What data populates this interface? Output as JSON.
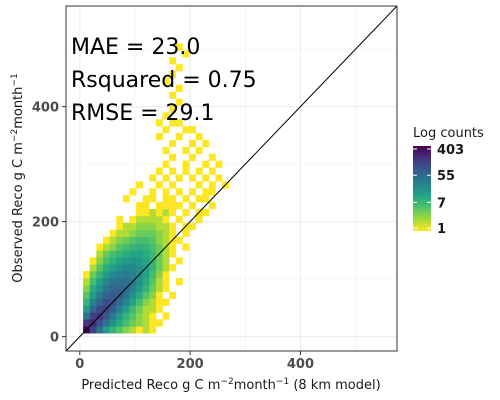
{
  "chart_data": {
    "type": "heatmap",
    "xlabel": "Predicted Reco g C m",
    "xlabel_sup1": "−2",
    "xlabel_mid": "month",
    "xlabel_sup2": "−1",
    "xlabel_suffix": " (8 km model)",
    "ylabel": "Observed Reco g C m",
    "ylabel_sup1": "−2",
    "ylabel_mid": "month",
    "ylabel_sup2": "−1",
    "xlim": [
      -25,
      575
    ],
    "ylim": [
      -25,
      575
    ],
    "x_ticks": [
      0,
      200,
      400
    ],
    "y_ticks": [
      0,
      200,
      400
    ],
    "x_tick_labels": [
      "0",
      "200",
      "400"
    ],
    "y_tick_labels": [
      "0",
      "200",
      "400"
    ],
    "grid": true,
    "bin_width": 12,
    "reference_line": "1:1",
    "annotations": [
      "MAE = 23.0",
      "Rsquared = 0.75",
      "RMSE = 29.1"
    ],
    "legend": {
      "title": "Log counts",
      "labels": [
        "403",
        "55",
        "7",
        "1"
      ],
      "label_values": [
        403,
        55,
        7,
        1
      ],
      "min": 1,
      "max": 403,
      "placement": "right",
      "colors": [
        "#fde725",
        "#a0da39",
        "#4ac16d",
        "#1fa187",
        "#277f8e",
        "#365c8d",
        "#46327e",
        "#440154"
      ]
    },
    "bins": [
      [
        12,
        12,
        403
      ],
      [
        24,
        12,
        120
      ],
      [
        36,
        12,
        40
      ],
      [
        48,
        12,
        15
      ],
      [
        60,
        12,
        8
      ],
      [
        72,
        12,
        5
      ],
      [
        84,
        12,
        3
      ],
      [
        96,
        12,
        2
      ],
      [
        108,
        12,
        1
      ],
      [
        120,
        12,
        2
      ],
      [
        132,
        12,
        1
      ],
      [
        12,
        24,
        150
      ],
      [
        24,
        24,
        200
      ],
      [
        36,
        24,
        90
      ],
      [
        48,
        24,
        40
      ],
      [
        60,
        24,
        20
      ],
      [
        72,
        24,
        10
      ],
      [
        84,
        24,
        6
      ],
      [
        96,
        24,
        4
      ],
      [
        108,
        24,
        3
      ],
      [
        120,
        24,
        2
      ],
      [
        132,
        24,
        1
      ],
      [
        144,
        24,
        1
      ],
      [
        12,
        36,
        40
      ],
      [
        24,
        36,
        130
      ],
      [
        36,
        36,
        160
      ],
      [
        48,
        36,
        80
      ],
      [
        60,
        36,
        35
      ],
      [
        72,
        36,
        15
      ],
      [
        84,
        36,
        8
      ],
      [
        96,
        36,
        5
      ],
      [
        108,
        36,
        3
      ],
      [
        120,
        36,
        2
      ],
      [
        132,
        36,
        1
      ],
      [
        156,
        36,
        1
      ],
      [
        12,
        48,
        15
      ],
      [
        24,
        48,
        60
      ],
      [
        36,
        48,
        110
      ],
      [
        48,
        48,
        120
      ],
      [
        60,
        48,
        70
      ],
      [
        72,
        48,
        30
      ],
      [
        84,
        48,
        14
      ],
      [
        96,
        48,
        7
      ],
      [
        108,
        48,
        4
      ],
      [
        120,
        48,
        2
      ],
      [
        132,
        48,
        2
      ],
      [
        144,
        48,
        1
      ],
      [
        12,
        60,
        8
      ],
      [
        24,
        60,
        30
      ],
      [
        36,
        60,
        60
      ],
      [
        48,
        60,
        100
      ],
      [
        60,
        60,
        90
      ],
      [
        72,
        60,
        55
      ],
      [
        84,
        60,
        25
      ],
      [
        96,
        60,
        12
      ],
      [
        108,
        60,
        6
      ],
      [
        120,
        60,
        3
      ],
      [
        132,
        60,
        2
      ],
      [
        144,
        60,
        1
      ],
      [
        156,
        60,
        1
      ],
      [
        12,
        72,
        5
      ],
      [
        24,
        72,
        15
      ],
      [
        36,
        72,
        35
      ],
      [
        48,
        72,
        60
      ],
      [
        60,
        72,
        80
      ],
      [
        72,
        72,
        70
      ],
      [
        84,
        72,
        40
      ],
      [
        96,
        72,
        20
      ],
      [
        108,
        72,
        10
      ],
      [
        120,
        72,
        5
      ],
      [
        132,
        72,
        3
      ],
      [
        144,
        72,
        1
      ],
      [
        168,
        72,
        1
      ],
      [
        12,
        84,
        3
      ],
      [
        24,
        84,
        10
      ],
      [
        36,
        84,
        20
      ],
      [
        48,
        84,
        40
      ],
      [
        60,
        84,
        55
      ],
      [
        72,
        84,
        60
      ],
      [
        84,
        84,
        50
      ],
      [
        96,
        84,
        30
      ],
      [
        108,
        84,
        15
      ],
      [
        120,
        84,
        8
      ],
      [
        132,
        84,
        4
      ],
      [
        144,
        84,
        2
      ],
      [
        156,
        84,
        1
      ],
      [
        12,
        96,
        2
      ],
      [
        24,
        96,
        6
      ],
      [
        36,
        96,
        14
      ],
      [
        48,
        96,
        25
      ],
      [
        60,
        96,
        40
      ],
      [
        72,
        96,
        45
      ],
      [
        84,
        96,
        45
      ],
      [
        96,
        96,
        35
      ],
      [
        108,
        96,
        20
      ],
      [
        120,
        96,
        10
      ],
      [
        132,
        96,
        5
      ],
      [
        144,
        96,
        2
      ],
      [
        156,
        96,
        1
      ],
      [
        180,
        96,
        1
      ],
      [
        12,
        108,
        1
      ],
      [
        24,
        108,
        4
      ],
      [
        36,
        108,
        8
      ],
      [
        48,
        108,
        15
      ],
      [
        60,
        108,
        25
      ],
      [
        72,
        108,
        30
      ],
      [
        84,
        108,
        35
      ],
      [
        96,
        108,
        30
      ],
      [
        108,
        108,
        22
      ],
      [
        120,
        108,
        12
      ],
      [
        132,
        108,
        6
      ],
      [
        144,
        108,
        3
      ],
      [
        156,
        108,
        1
      ],
      [
        24,
        120,
        2
      ],
      [
        36,
        120,
        5
      ],
      [
        48,
        120,
        10
      ],
      [
        60,
        120,
        15
      ],
      [
        72,
        120,
        20
      ],
      [
        84,
        120,
        25
      ],
      [
        96,
        120,
        25
      ],
      [
        108,
        120,
        20
      ],
      [
        120,
        120,
        14
      ],
      [
        132,
        120,
        8
      ],
      [
        144,
        120,
        4
      ],
      [
        156,
        120,
        2
      ],
      [
        168,
        120,
        1
      ],
      [
        24,
        132,
        1
      ],
      [
        36,
        132,
        3
      ],
      [
        48,
        132,
        6
      ],
      [
        60,
        132,
        9
      ],
      [
        72,
        132,
        12
      ],
      [
        84,
        132,
        15
      ],
      [
        96,
        132,
        18
      ],
      [
        108,
        132,
        16
      ],
      [
        120,
        132,
        12
      ],
      [
        132,
        132,
        8
      ],
      [
        144,
        132,
        4
      ],
      [
        156,
        132,
        2
      ],
      [
        180,
        132,
        1
      ],
      [
        36,
        144,
        2
      ],
      [
        48,
        144,
        4
      ],
      [
        60,
        144,
        6
      ],
      [
        72,
        144,
        8
      ],
      [
        84,
        144,
        10
      ],
      [
        96,
        144,
        12
      ],
      [
        108,
        144,
        12
      ],
      [
        120,
        144,
        10
      ],
      [
        132,
        144,
        7
      ],
      [
        144,
        144,
        4
      ],
      [
        156,
        144,
        2
      ],
      [
        168,
        144,
        1
      ],
      [
        36,
        156,
        1
      ],
      [
        48,
        156,
        2
      ],
      [
        60,
        156,
        3
      ],
      [
        72,
        156,
        5
      ],
      [
        84,
        156,
        6
      ],
      [
        96,
        156,
        8
      ],
      [
        108,
        156,
        9
      ],
      [
        120,
        156,
        8
      ],
      [
        132,
        156,
        6
      ],
      [
        144,
        156,
        4
      ],
      [
        156,
        156,
        2
      ],
      [
        168,
        156,
        1
      ],
      [
        192,
        156,
        1
      ],
      [
        48,
        168,
        1
      ],
      [
        60,
        168,
        2
      ],
      [
        72,
        168,
        3
      ],
      [
        84,
        168,
        4
      ],
      [
        96,
        168,
        5
      ],
      [
        108,
        168,
        6
      ],
      [
        120,
        168,
        6
      ],
      [
        132,
        168,
        5
      ],
      [
        144,
        168,
        3
      ],
      [
        156,
        168,
        2
      ],
      [
        168,
        168,
        1
      ],
      [
        180,
        168,
        1
      ],
      [
        60,
        180,
        1
      ],
      [
        72,
        180,
        2
      ],
      [
        84,
        180,
        2
      ],
      [
        96,
        180,
        3
      ],
      [
        108,
        180,
        4
      ],
      [
        120,
        180,
        4
      ],
      [
        132,
        180,
        4
      ],
      [
        144,
        180,
        3
      ],
      [
        156,
        180,
        2
      ],
      [
        168,
        180,
        1
      ],
      [
        192,
        180,
        1
      ],
      [
        72,
        192,
        1
      ],
      [
        84,
        192,
        2
      ],
      [
        96,
        192,
        2
      ],
      [
        108,
        192,
        3
      ],
      [
        120,
        192,
        3
      ],
      [
        132,
        192,
        3
      ],
      [
        144,
        192,
        2
      ],
      [
        156,
        192,
        2
      ],
      [
        168,
        192,
        1
      ],
      [
        192,
        192,
        1
      ],
      [
        204,
        192,
        1
      ],
      [
        72,
        204,
        1
      ],
      [
        96,
        204,
        1
      ],
      [
        108,
        204,
        2
      ],
      [
        120,
        204,
        2
      ],
      [
        132,
        204,
        2
      ],
      [
        144,
        204,
        2
      ],
      [
        156,
        204,
        1
      ],
      [
        180,
        204,
        1
      ],
      [
        216,
        204,
        1
      ],
      [
        108,
        216,
        1
      ],
      [
        120,
        216,
        1
      ],
      [
        132,
        216,
        2
      ],
      [
        144,
        216,
        1
      ],
      [
        156,
        216,
        2
      ],
      [
        168,
        216,
        1
      ],
      [
        192,
        216,
        1
      ],
      [
        216,
        216,
        1
      ],
      [
        228,
        216,
        1
      ],
      [
        108,
        228,
        1
      ],
      [
        120,
        228,
        1
      ],
      [
        144,
        228,
        1
      ],
      [
        156,
        228,
        1
      ],
      [
        168,
        228,
        1
      ],
      [
        180,
        228,
        1
      ],
      [
        204,
        228,
        1
      ],
      [
        240,
        228,
        1
      ],
      [
        84,
        240,
        1
      ],
      [
        120,
        240,
        1
      ],
      [
        132,
        240,
        1
      ],
      [
        156,
        240,
        1
      ],
      [
        168,
        240,
        1
      ],
      [
        192,
        240,
        1
      ],
      [
        216,
        240,
        1
      ],
      [
        228,
        240,
        1
      ],
      [
        96,
        252,
        1
      ],
      [
        132,
        252,
        1
      ],
      [
        156,
        252,
        1
      ],
      [
        180,
        252,
        1
      ],
      [
        204,
        252,
        1
      ],
      [
        228,
        252,
        1
      ],
      [
        240,
        252,
        1
      ],
      [
        108,
        264,
        1
      ],
      [
        144,
        264,
        1
      ],
      [
        168,
        264,
        1
      ],
      [
        216,
        264,
        1
      ],
      [
        240,
        264,
        1
      ],
      [
        264,
        264,
        1
      ],
      [
        132,
        276,
        1
      ],
      [
        156,
        276,
        1
      ],
      [
        180,
        276,
        1
      ],
      [
        204,
        276,
        1
      ],
      [
        228,
        276,
        1
      ],
      [
        252,
        276,
        1
      ],
      [
        144,
        288,
        1
      ],
      [
        168,
        288,
        1
      ],
      [
        192,
        288,
        1
      ],
      [
        216,
        288,
        1
      ],
      [
        240,
        288,
        1
      ],
      [
        156,
        300,
        1
      ],
      [
        192,
        300,
        1
      ],
      [
        228,
        300,
        1
      ],
      [
        252,
        300,
        1
      ],
      [
        168,
        312,
        1
      ],
      [
        204,
        312,
        1
      ],
      [
        240,
        312,
        1
      ],
      [
        156,
        324,
        1
      ],
      [
        192,
        324,
        1
      ],
      [
        216,
        324,
        1
      ],
      [
        168,
        336,
        1
      ],
      [
        204,
        336,
        1
      ],
      [
        228,
        336,
        1
      ],
      [
        144,
        348,
        1
      ],
      [
        180,
        348,
        1
      ],
      [
        216,
        348,
        1
      ],
      [
        156,
        360,
        1
      ],
      [
        192,
        360,
        1
      ],
      [
        204,
        360,
        1
      ],
      [
        144,
        372,
        1
      ],
      [
        168,
        372,
        1
      ],
      [
        180,
        372,
        1
      ],
      [
        156,
        384,
        1
      ],
      [
        168,
        396,
        1
      ],
      [
        180,
        408,
        1
      ],
      [
        168,
        420,
        1
      ],
      [
        180,
        432,
        1
      ],
      [
        156,
        444,
        1
      ],
      [
        168,
        456,
        1
      ],
      [
        180,
        468,
        1
      ],
      [
        168,
        480,
        1
      ],
      [
        192,
        492,
        1
      ],
      [
        180,
        504,
        1
      ]
    ]
  }
}
